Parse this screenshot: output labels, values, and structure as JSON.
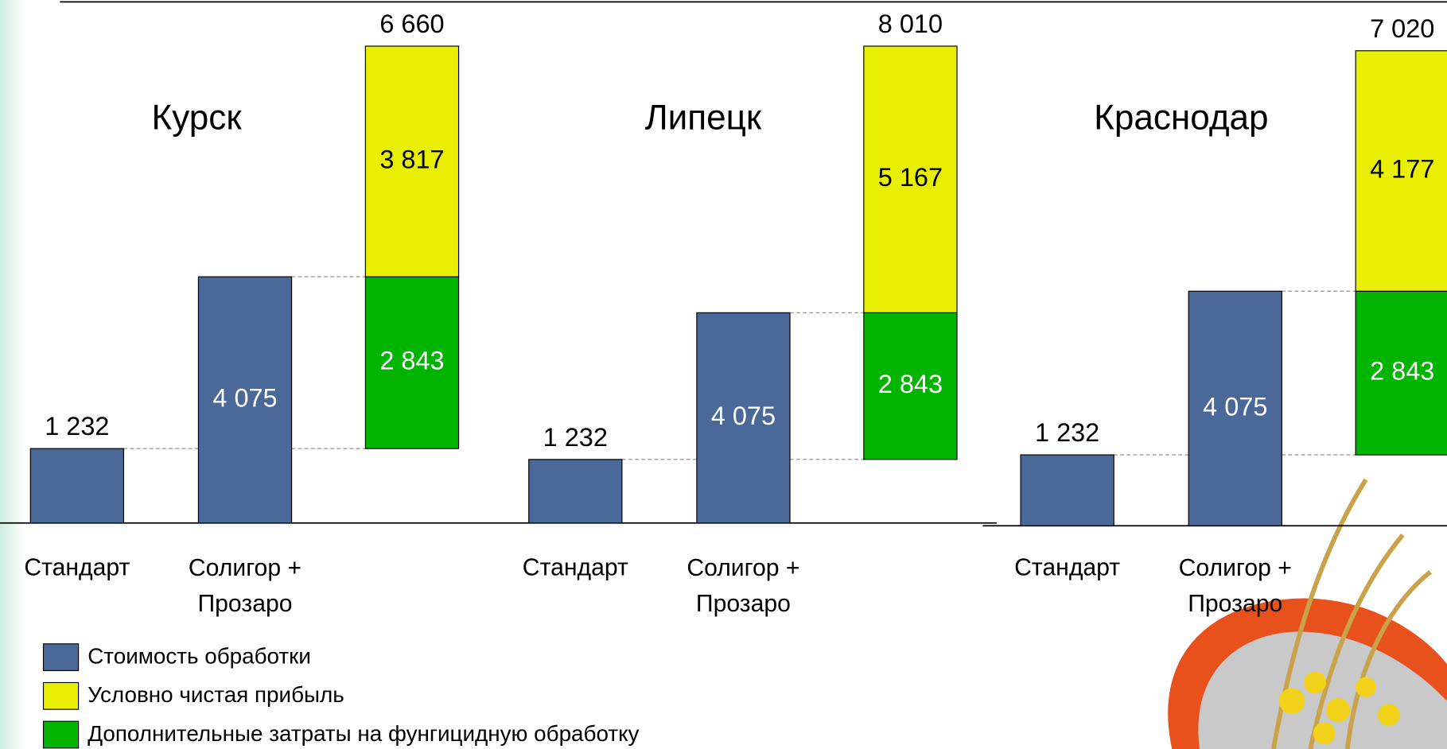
{
  "chart_data": [
    {
      "type": "waterfall",
      "title": "Курск",
      "categories": [
        "Стандарт",
        "Солигор +\nПрозаро",
        null
      ],
      "series": [
        {
          "name": "Стоимость обработки",
          "color": "#4a6898",
          "values": [
            1232,
            4075,
            null
          ],
          "value_labels": [
            "1 232",
            "4 075",
            null
          ]
        },
        {
          "name": "Условно чистая прибыль",
          "color": "#e8ef00",
          "values": [
            null,
            null,
            3817
          ],
          "value_labels": [
            null,
            null,
            "3 817"
          ]
        },
        {
          "name": "Дополнительные затраты на фунгицидную обработку",
          "color": "#00b400",
          "values": [
            null,
            null,
            2843
          ],
          "value_labels": [
            null,
            null,
            "2 843"
          ]
        }
      ],
      "total": 6660,
      "total_label": "6 660"
    },
    {
      "type": "waterfall",
      "title": "Липецк",
      "categories": [
        "Стандарт",
        "Солигор +\nПрозаро",
        null
      ],
      "series": [
        {
          "name": "Стоимость обработки",
          "color": "#4a6898",
          "values": [
            1232,
            4075,
            null
          ],
          "value_labels": [
            "1 232",
            "4 075",
            null
          ]
        },
        {
          "name": "Условно чистая прибыль",
          "color": "#e8ef00",
          "values": [
            null,
            null,
            5167
          ],
          "value_labels": [
            null,
            null,
            "5 167"
          ]
        },
        {
          "name": "Дополнительные затраты на фунгицидную обработку",
          "color": "#00b400",
          "values": [
            null,
            null,
            2843
          ],
          "value_labels": [
            null,
            null,
            "2 843"
          ]
        }
      ],
      "total": 8010,
      "total_label": "8 010"
    },
    {
      "type": "waterfall",
      "title": "Краснодар",
      "categories": [
        "Стандарт",
        "Солигор +\nПрозаро",
        null
      ],
      "series": [
        {
          "name": "Стоимость обработки",
          "color": "#4a6898",
          "values": [
            1232,
            4075,
            null
          ],
          "value_labels": [
            "1 232",
            "4 075",
            null
          ]
        },
        {
          "name": "Условно чистая прибыль",
          "color": "#e8ef00",
          "values": [
            null,
            null,
            4177
          ],
          "value_labels": [
            null,
            null,
            "4 177"
          ]
        },
        {
          "name": "Дополнительные затраты на фунгицидную обработку",
          "color": "#00b400",
          "values": [
            null,
            null,
            2843
          ],
          "value_labels": [
            null,
            null,
            "2 843"
          ]
        }
      ],
      "total": 7020,
      "total_label": "7 020"
    }
  ]
}
